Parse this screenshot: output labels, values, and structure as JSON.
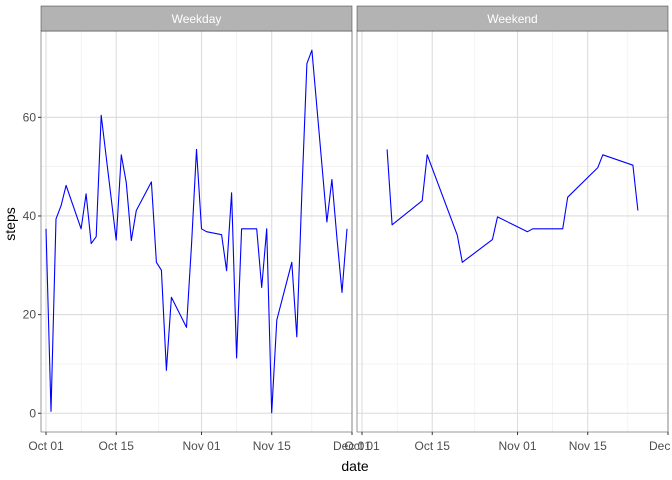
{
  "chart_data": {
    "type": "line",
    "facet_type": "wrap",
    "xlabel": "date",
    "ylabel": "steps",
    "x_ticks": [
      "Oct 01",
      "Oct 15",
      "Nov 01",
      "Nov 15",
      "Dec 01"
    ],
    "x_tick_values": [
      "2012-10-01",
      "2012-10-15",
      "2012-11-01",
      "2012-11-15",
      "2012-12-01"
    ],
    "x_range": [
      "2012-09-30",
      "2012-12-01"
    ],
    "y_ticks": [
      0,
      20,
      40,
      60
    ],
    "y_range": [
      -3.8,
      77.5
    ],
    "grid": true,
    "line_color": "#0000ff",
    "strip_color": "#b3b3b3",
    "panels": [
      {
        "label": "Weekday",
        "series": [
          {
            "x": [
              "2012-10-01",
              "2012-10-02",
              "2012-10-03",
              "2012-10-04",
              "2012-10-05",
              "2012-10-08",
              "2012-10-09",
              "2012-10-10",
              "2012-10-11",
              "2012-10-12",
              "2012-10-15",
              "2012-10-16",
              "2012-10-17",
              "2012-10-18",
              "2012-10-19",
              "2012-10-22",
              "2012-10-23",
              "2012-10-24",
              "2012-10-25",
              "2012-10-26",
              "2012-10-29",
              "2012-10-30",
              "2012-10-31",
              "2012-11-01",
              "2012-11-02",
              "2012-11-05",
              "2012-11-06",
              "2012-11-07",
              "2012-11-08",
              "2012-11-09",
              "2012-11-12",
              "2012-11-13",
              "2012-11-14",
              "2012-11-15",
              "2012-11-16",
              "2012-11-19",
              "2012-11-20",
              "2012-11-21",
              "2012-11-22",
              "2012-11-23",
              "2012-11-26",
              "2012-11-27",
              "2012-11-28",
              "2012-11-29",
              "2012-11-30"
            ],
            "y": [
              37.4,
              0.4,
              39.4,
              42.1,
              46.2,
              37.4,
              44.5,
              34.4,
              35.8,
              60.4,
              35.1,
              52.4,
              46.7,
              35.0,
              41.1,
              46.9,
              30.6,
              29.0,
              8.7,
              23.5,
              17.4,
              34.1,
              53.5,
              37.4,
              36.8,
              36.2,
              28.9,
              44.7,
              11.2,
              37.4,
              37.4,
              25.5,
              37.4,
              0.1,
              18.9,
              30.6,
              15.5,
              44.4,
              70.9,
              73.6,
              38.8,
              47.4,
              35.4,
              24.5,
              37.4
            ]
          }
        ]
      },
      {
        "label": "Weekend",
        "series": [
          {
            "x": [
              "2012-10-06",
              "2012-10-07",
              "2012-10-13",
              "2012-10-14",
              "2012-10-20",
              "2012-10-21",
              "2012-10-27",
              "2012-10-28",
              "2012-11-03",
              "2012-11-04",
              "2012-11-10",
              "2012-11-11",
              "2012-11-17",
              "2012-11-18",
              "2012-11-24",
              "2012-11-25"
            ],
            "y": [
              53.5,
              38.2,
              43.1,
              52.4,
              36.1,
              30.6,
              35.2,
              39.8,
              36.8,
              37.4,
              37.4,
              43.8,
              49.8,
              52.4,
              50.3,
              41.1
            ]
          }
        ]
      }
    ]
  }
}
